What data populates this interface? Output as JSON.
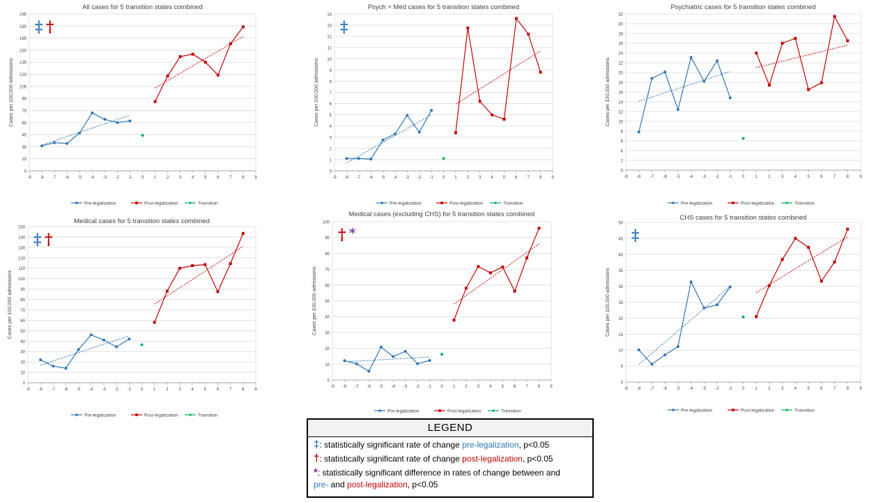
{
  "colors": {
    "pre": "#2e75b6",
    "post": "#c00000",
    "transition": "#00b050",
    "diff": "#7030a0",
    "grid": "#d9d9d9",
    "axis": "#808080"
  },
  "series_labels": {
    "pre": "Pre-legalization",
    "post": "Post-legalization",
    "transition": "Transition"
  },
  "y_axis_label": "Cases per 100,000 admissions",
  "chart_data": [
    {
      "type": "line",
      "title": "All cases for 5 transition states combined",
      "ylabel": "Cases per 100,000 admissions",
      "xlim": [
        -9,
        9
      ],
      "ylim": [
        0,
        195
      ],
      "ystep": 15,
      "markers": [
        "‡",
        "†"
      ],
      "series": [
        {
          "name": "Pre-legalization",
          "x": [
            -8,
            -7,
            -6,
            -5,
            -4,
            -3,
            -2,
            -1
          ],
          "values": [
            31,
            35,
            34,
            47,
            72,
            64,
            60,
            62
          ]
        },
        {
          "name": "Post-legalization",
          "x": [
            1,
            2,
            3,
            4,
            5,
            6,
            7,
            8
          ],
          "values": [
            86,
            118,
            142,
            145,
            135,
            119,
            158,
            179
          ]
        },
        {
          "name": "Transition",
          "x": [
            0
          ],
          "values": [
            44
          ]
        }
      ],
      "trend": {
        "pre": [
          [
            -8,
            32
          ],
          [
            -1,
            69
          ]
        ],
        "post": [
          [
            1,
            103
          ],
          [
            8,
            167
          ]
        ]
      }
    },
    {
      "type": "line",
      "title": "Psych + Med cases for 5 transition states combined",
      "ylabel": "Cases per 100,000 admissions",
      "xlim": [
        -9,
        9
      ],
      "ylim": [
        0,
        14
      ],
      "ystep": 1,
      "markers": [
        "‡"
      ],
      "series": [
        {
          "name": "Pre-legalization",
          "x": [
            -8,
            -7,
            -6,
            -5,
            -4,
            -3,
            -2,
            -1
          ],
          "values": [
            1.1,
            1.1,
            1.05,
            2.75,
            3.3,
            4.95,
            3.45,
            5.4
          ]
        },
        {
          "name": "Post-legalization",
          "x": [
            1,
            2,
            3,
            4,
            5,
            6,
            7,
            8
          ],
          "values": [
            3.4,
            12.75,
            6.2,
            5.0,
            4.6,
            13.6,
            12.2,
            8.8
          ]
        },
        {
          "name": "Transition",
          "x": [
            0
          ],
          "values": [
            1.1
          ]
        }
      ],
      "trend": {
        "pre": [
          [
            -8,
            0.7
          ],
          [
            -1,
            5.0
          ]
        ],
        "post": [
          [
            1,
            5.95
          ],
          [
            8,
            10.7
          ]
        ]
      }
    },
    {
      "type": "line",
      "title": "Psychiatric cases for 5 transition states combined",
      "ylabel": "Cases per 100,000 admissions",
      "xlim": [
        -9,
        9
      ],
      "ylim": [
        0,
        32
      ],
      "ystep": 2,
      "markers": [],
      "series": [
        {
          "name": "Pre-legalization",
          "x": [
            -8,
            -7,
            -6,
            -5,
            -4,
            -3,
            -2,
            -1
          ],
          "values": [
            7.8,
            18.8,
            20.1,
            12.4,
            23.1,
            18.2,
            22.4,
            14.8
          ]
        },
        {
          "name": "Post-legalization",
          "x": [
            1,
            2,
            3,
            4,
            5,
            6,
            7,
            8
          ],
          "values": [
            24.0,
            17.4,
            26.0,
            27.0,
            16.5,
            17.9,
            31.5,
            26.5
          ]
        },
        {
          "name": "Transition",
          "x": [
            0
          ],
          "values": [
            6.5
          ]
        }
      ],
      "trend": {
        "pre": [
          [
            -8,
            14.1
          ],
          [
            -1,
            20.2
          ]
        ],
        "post": [
          [
            1,
            21.0
          ],
          [
            8,
            25.6
          ]
        ]
      }
    },
    {
      "type": "line",
      "title": "Medical cases for 5 transition states combined",
      "ylabel": "Cases per 100,000 admissions",
      "xlim": [
        -9,
        9
      ],
      "ylim": [
        0,
        150
      ],
      "ystep": 10,
      "markers": [
        "‡",
        "†"
      ],
      "series": [
        {
          "name": "Pre-legalization",
          "x": [
            -8,
            -7,
            -6,
            -5,
            -4,
            -3,
            -2,
            -1
          ],
          "values": [
            22,
            16,
            14,
            32,
            46,
            41,
            34.5,
            42
          ]
        },
        {
          "name": "Post-legalization",
          "x": [
            1,
            2,
            3,
            4,
            5,
            6,
            7,
            8
          ],
          "values": [
            58,
            88,
            110,
            112.5,
            113.5,
            87.5,
            114.5,
            143.5
          ]
        },
        {
          "name": "Transition",
          "x": [
            0
          ],
          "values": [
            36.5
          ]
        }
      ],
      "trend": {
        "pre": [
          [
            -8,
            17
          ],
          [
            -1,
            45
          ]
        ],
        "post": [
          [
            1,
            75.5
          ],
          [
            8,
            131
          ]
        ]
      }
    },
    {
      "type": "line",
      "title": "Medical cases (excluding CHS) for 5 transition states combined",
      "ylabel": "Cases per 100,000 admissions",
      "xlim": [
        -9,
        9
      ],
      "ylim": [
        0,
        100
      ],
      "ystep": 10,
      "markers": [
        "†",
        "*"
      ],
      "series": [
        {
          "name": "Pre-legalization",
          "x": [
            -8,
            -7,
            -6,
            -5,
            -4,
            -3,
            -2,
            -1
          ],
          "values": [
            12.2,
            10.2,
            5.5,
            20.8,
            14.8,
            18.1,
            10.3,
            12.3
          ]
        },
        {
          "name": "Post-legalization",
          "x": [
            1,
            2,
            3,
            4,
            5,
            6,
            7,
            8
          ],
          "values": [
            37.8,
            58.0,
            71.7,
            67.7,
            71.4,
            56.1,
            77.2,
            95.9
          ]
        },
        {
          "name": "Transition",
          "x": [
            0
          ],
          "values": [
            16.2
          ]
        }
      ],
      "trend": {
        "pre": [
          [
            -8,
            11.5
          ],
          [
            -1,
            14.5
          ]
        ],
        "post": [
          [
            1,
            48
          ],
          [
            8,
            86
          ]
        ]
      }
    },
    {
      "type": "line",
      "title": "CHS cases for 5 transition states combined",
      "ylabel": "Cases per 100,000 admissions",
      "xlim": [
        -9,
        9
      ],
      "ylim": [
        0,
        50
      ],
      "ystep": 5,
      "markers": [
        "‡"
      ],
      "series": [
        {
          "name": "Pre-legalization",
          "x": [
            -8,
            -7,
            -6,
            -5,
            -4,
            -3,
            -2,
            -1
          ],
          "values": [
            10.1,
            5.6,
            8.5,
            11.1,
            31.4,
            23.2,
            24.2,
            29.8
          ]
        },
        {
          "name": "Post-legalization",
          "x": [
            1,
            2,
            3,
            4,
            5,
            6,
            7,
            8
          ],
          "values": [
            20.5,
            30.2,
            38.4,
            45.0,
            42.2,
            31.6,
            37.6,
            47.9
          ]
        },
        {
          "name": "Transition",
          "x": [
            0
          ],
          "values": [
            20.4
          ]
        }
      ],
      "trend": {
        "pre": [
          [
            -8,
            5.5
          ],
          [
            -1,
            30
          ]
        ],
        "post": [
          [
            1,
            28
          ],
          [
            8,
            45.5
          ]
        ]
      }
    }
  ],
  "legend": {
    "title": "LEGEND",
    "row1": {
      "symbol": "‡",
      "text": ": statistically significant rate of change ",
      "colored": "pre-legalization",
      "suffix": ", p<0.05"
    },
    "row2": {
      "symbol": "†",
      "text": ": statistically significant rate of change ",
      "colored": "post-legalization",
      "suffix": ", p<0.05"
    },
    "row3": {
      "symbol": "*",
      "text": ": statistically significant difference in rates of change between and",
      "pre_word": "pre-",
      "and_word": " and ",
      "post_word": "post-legalization",
      "suffix": ", p<0.05"
    }
  }
}
